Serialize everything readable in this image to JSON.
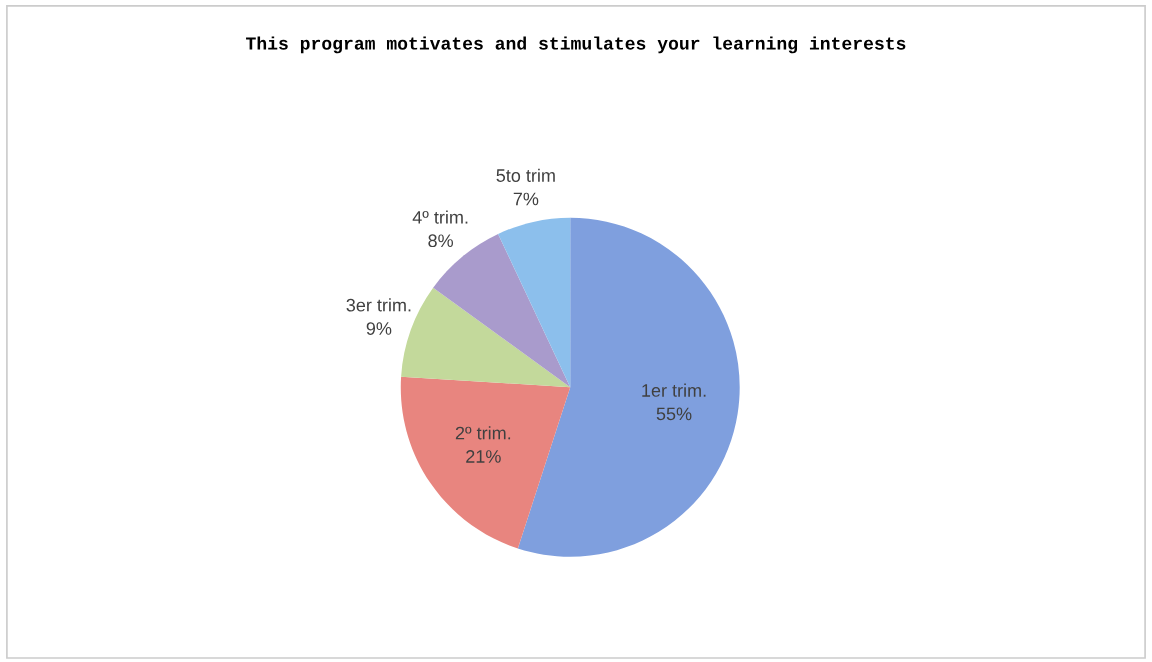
{
  "chart_data": {
    "type": "pie",
    "title": "This program motivates and stimulates your learning interests",
    "categories": [
      "1er trim.",
      "2º trim.",
      "3er trim.",
      "4º trim.",
      "5to trim"
    ],
    "values": [
      55,
      21,
      9,
      8,
      7
    ],
    "value_labels": [
      "55%",
      "21%",
      "9%",
      "8%",
      "7%"
    ],
    "colors": [
      "#7f9fde",
      "#e8857f",
      "#c3d99b",
      "#a99bcc",
      "#8cbfec"
    ],
    "legend": false
  }
}
